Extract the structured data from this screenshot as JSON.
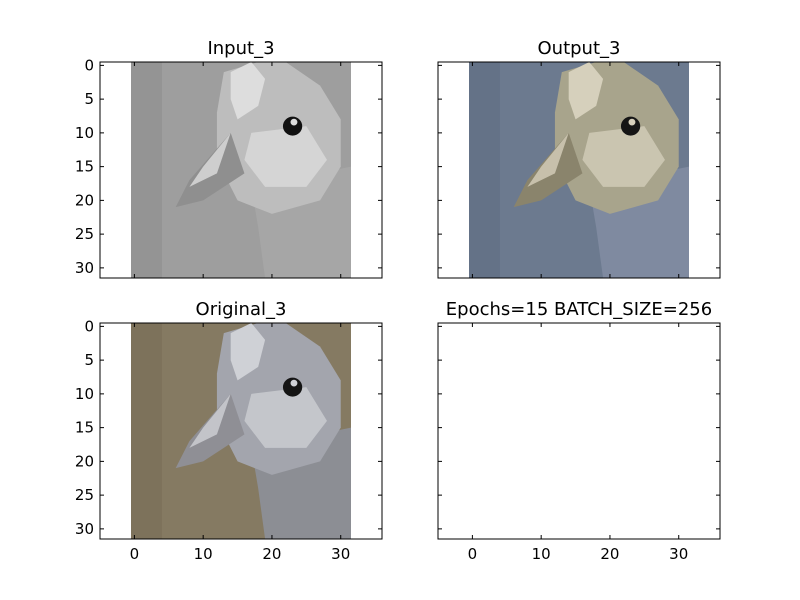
{
  "chart_data": [
    {
      "type": "heatmap",
      "title": "Input_3",
      "x_ticks": [
        "0",
        "10",
        "20",
        "30"
      ],
      "y_ticks": [
        "0",
        "5",
        "10",
        "15",
        "20",
        "25",
        "30"
      ],
      "xlim": [
        -5,
        36
      ],
      "ylim": [
        31.5,
        -0.5
      ],
      "image_extent": {
        "x": [
          -0.5,
          31.5
        ],
        "y": [
          -0.5,
          31.5
        ]
      },
      "image": "grayscale bird head",
      "palette": {
        "bg": "#9e9e9e",
        "bg_dark": "#8a8a8a",
        "bird_light": "#dddddd",
        "bird_mid": "#bdbdbd",
        "neck": "#a6a6a6",
        "eye": "#111111",
        "beak": "#8f8f8f"
      },
      "show_x_ticklabels": false,
      "show_y_ticklabels": true
    },
    {
      "type": "heatmap",
      "title": "Output_3",
      "x_ticks": [
        "0",
        "10",
        "20",
        "30"
      ],
      "y_ticks": [
        "0",
        "5",
        "10",
        "15",
        "20",
        "25",
        "30"
      ],
      "xlim": [
        -5,
        36
      ],
      "ylim": [
        31.5,
        -0.5
      ],
      "image_extent": {
        "x": [
          -0.5,
          31.5
        ],
        "y": [
          -0.5,
          31.5
        ]
      },
      "image": "colorized bird head (bluish)",
      "palette": {
        "bg": "#6c7a8f",
        "bg_dark": "#5c6a7f",
        "bird_light": "#d6d0bc",
        "bird_mid": "#a8a48c",
        "neck": "#7f8aa0",
        "eye": "#151515",
        "beak": "#8a846c"
      },
      "show_x_ticklabels": false,
      "show_y_ticklabels": false
    },
    {
      "type": "heatmap",
      "title": "Original_3",
      "x_ticks": [
        "0",
        "10",
        "20",
        "30"
      ],
      "y_ticks": [
        "0",
        "5",
        "10",
        "15",
        "20",
        "25",
        "30"
      ],
      "xlim": [
        -5,
        36
      ],
      "ylim": [
        31.5,
        -0.5
      ],
      "image_extent": {
        "x": [
          -0.5,
          31.5
        ],
        "y": [
          -0.5,
          31.5
        ]
      },
      "image": "original bird head (brownish)",
      "palette": {
        "bg": "#857a62",
        "bg_dark": "#756a54",
        "bird_light": "#cfd1d6",
        "bird_mid": "#a3a5ad",
        "neck": "#8c8e94",
        "eye": "#141414",
        "beak": "#8f8f95"
      },
      "show_x_ticklabels": true,
      "show_y_ticklabels": true
    },
    {
      "type": "heatmap",
      "title": "Epochs=15 BATCH_SIZE=256",
      "x_ticks": [
        "0",
        "10",
        "20",
        "30"
      ],
      "y_ticks": [
        "0",
        "5",
        "10",
        "15",
        "20",
        "25",
        "30"
      ],
      "xlim": [
        -5,
        36
      ],
      "ylim": [
        31.5,
        -0.5
      ],
      "image_extent": null,
      "image": "empty",
      "palette": null,
      "show_x_ticklabels": true,
      "show_y_ticklabels": false
    }
  ]
}
